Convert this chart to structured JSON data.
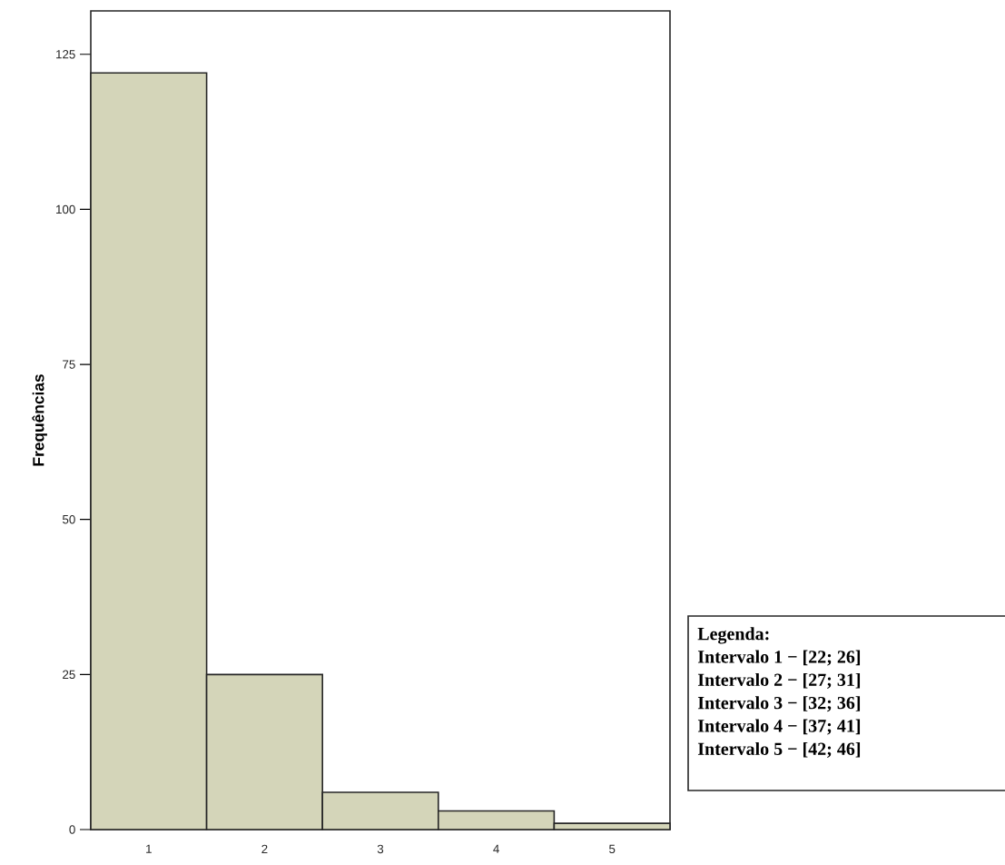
{
  "chart_data": {
    "type": "bar",
    "ylabel": "Frequências",
    "categories": [
      "1",
      "2",
      "3",
      "4",
      "5"
    ],
    "values": [
      122,
      25,
      6,
      3,
      1
    ],
    "color": "#d4d5b9",
    "ylim": [
      0,
      132
    ],
    "yticks": [
      0,
      25,
      50,
      75,
      100,
      125
    ],
    "grid": false,
    "annotations": [
      "Legenda:",
      "Intervalo 1 − [22; 26]",
      "Intervalo 2 − [27; 31]",
      "Intervalo 3 − [32; 36]",
      "Intervalo 4 − [37; 41]",
      "Intervalo 5 − [42; 46]"
    ]
  }
}
